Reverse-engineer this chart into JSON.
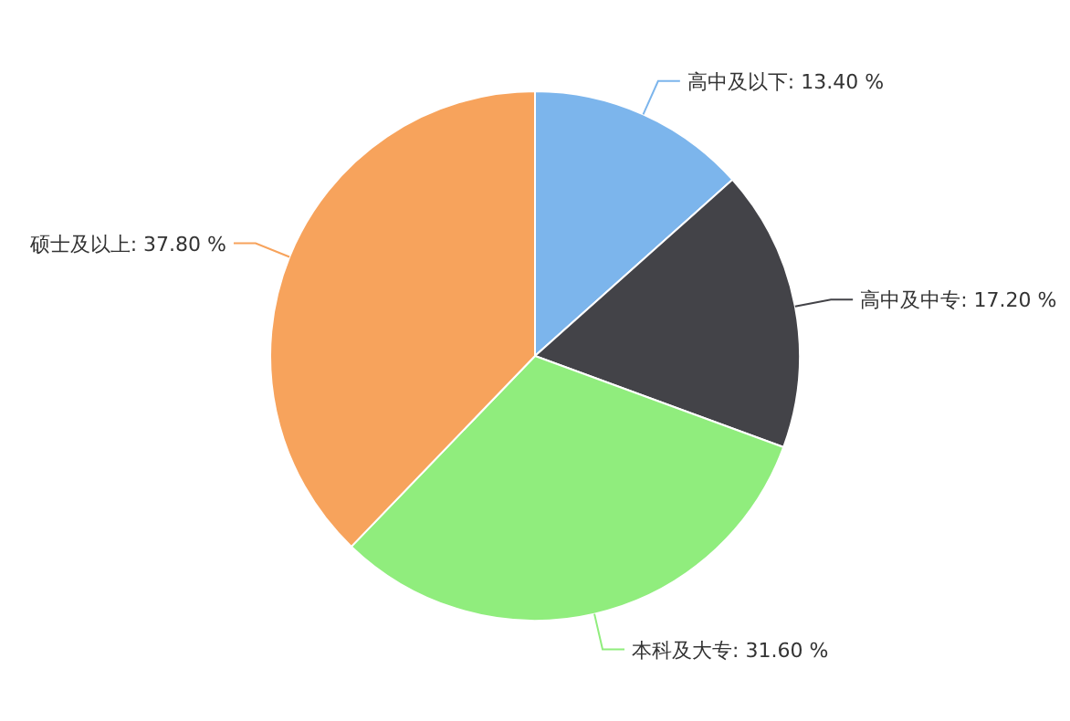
{
  "chart_data": {
    "type": "pie",
    "categories": [
      "高中及以下",
      "高中及中专",
      "本科及大专",
      "硕士及以上"
    ],
    "values": [
      13.4,
      17.2,
      31.6,
      37.8
    ],
    "value_labels": [
      "13.40 %",
      "17.20 %",
      "31.60 %",
      "37.80 %"
    ],
    "colors": [
      "#7cb5ec",
      "#434348",
      "#90ed7d",
      "#f7a35c"
    ],
    "legend": false
  }
}
